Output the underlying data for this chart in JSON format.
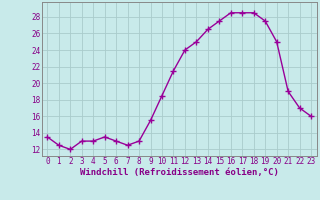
{
  "x": [
    0,
    1,
    2,
    3,
    4,
    5,
    6,
    7,
    8,
    9,
    10,
    11,
    12,
    13,
    14,
    15,
    16,
    17,
    18,
    19,
    20,
    21,
    22,
    23
  ],
  "y": [
    13.5,
    12.5,
    12.0,
    13.0,
    13.0,
    13.5,
    13.0,
    12.5,
    13.0,
    15.5,
    18.5,
    21.5,
    24.0,
    25.0,
    26.5,
    27.5,
    28.5,
    28.5,
    28.5,
    27.5,
    25.0,
    19.0,
    17.0,
    16.0
  ],
  "line_color": "#990099",
  "marker": "+",
  "marker_size": 4,
  "linewidth": 1.0,
  "bg_color": "#c8eaea",
  "grid_color": "#aacccc",
  "xlabel": "Windchill (Refroidissement éolien,°C)",
  "xlabel_color": "#880088",
  "tick_color": "#880088",
  "ylabel_ticks": [
    12,
    14,
    16,
    18,
    20,
    22,
    24,
    26,
    28
  ],
  "ylim": [
    11.2,
    29.8
  ],
  "xlim": [
    -0.5,
    23.5
  ],
  "xticks": [
    0,
    1,
    2,
    3,
    4,
    5,
    6,
    7,
    8,
    9,
    10,
    11,
    12,
    13,
    14,
    15,
    16,
    17,
    18,
    19,
    20,
    21,
    22,
    23
  ],
  "xtick_labels": [
    "0",
    "1",
    "2",
    "3",
    "4",
    "5",
    "6",
    "7",
    "8",
    "9",
    "10",
    "11",
    "12",
    "13",
    "14",
    "15",
    "16",
    "17",
    "18",
    "19",
    "20",
    "21",
    "22",
    "23"
  ],
  "tick_fontsize": 5.5,
  "xlabel_fontsize": 6.5
}
